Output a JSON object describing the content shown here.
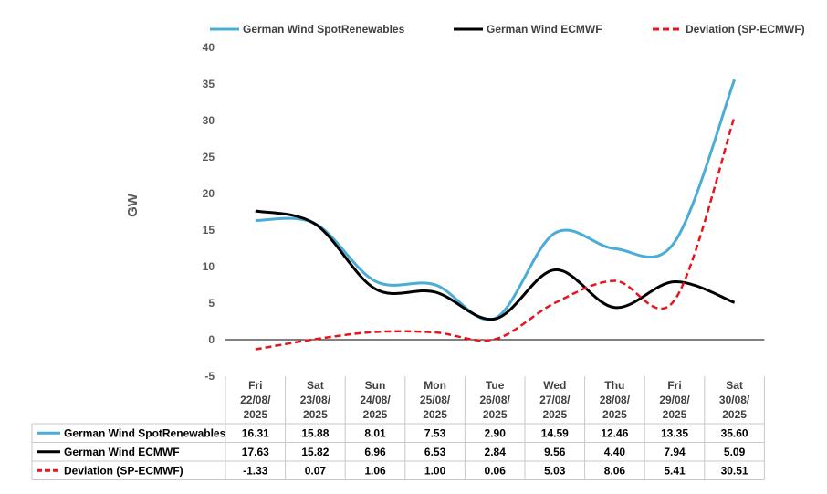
{
  "chart_data": {
    "type": "line",
    "title": "",
    "xlabel": "",
    "ylabel": "GW",
    "ylim": [
      -5,
      40
    ],
    "yticks": [
      "-5",
      "0",
      "5",
      "10",
      "15",
      "20",
      "25",
      "30",
      "35",
      "40"
    ],
    "grid": false,
    "legend_position": "top",
    "categories": [
      [
        "Fri",
        "22/08/",
        "2025"
      ],
      [
        "Sat",
        "23/08/",
        "2025"
      ],
      [
        "Sun",
        "24/08/",
        "2025"
      ],
      [
        "Mon",
        "25/08/",
        "2025"
      ],
      [
        "Tue",
        "26/08/",
        "2025"
      ],
      [
        "Wed",
        "27/08/",
        "2025"
      ],
      [
        "Thu",
        "28/08/",
        "2025"
      ],
      [
        "Fri",
        "29/08/",
        "2025"
      ],
      [
        "Sat",
        "30/08/",
        "2025"
      ]
    ],
    "series": [
      {
        "name": "German Wind SpotRenewables",
        "color": "#4bacd6",
        "dash": "solid",
        "values": [
          16.31,
          15.88,
          8.01,
          7.53,
          2.9,
          14.59,
          12.46,
          13.35,
          35.6
        ],
        "labels": [
          "16.31",
          "15.88",
          "8.01",
          "7.53",
          "2.90",
          "14.59",
          "12.46",
          "13.35",
          "35.60"
        ]
      },
      {
        "name": "German Wind ECMWF",
        "color": "#000000",
        "dash": "solid",
        "values": [
          17.63,
          15.82,
          6.96,
          6.53,
          2.84,
          9.56,
          4.4,
          7.94,
          5.09
        ],
        "labels": [
          "17.63",
          "15.82",
          "6.96",
          "6.53",
          "2.84",
          "9.56",
          "4.40",
          "7.94",
          "5.09"
        ]
      },
      {
        "name": "Deviation (SP-ECMWF)",
        "color": "#e8141c",
        "dash": "dashed",
        "values": [
          -1.33,
          0.07,
          1.06,
          1.0,
          0.06,
          5.03,
          8.06,
          5.41,
          30.51
        ],
        "labels": [
          "-1.33",
          "0.07",
          "1.06",
          "1.00",
          "0.06",
          "5.03",
          "8.06",
          "5.41",
          "30.51"
        ]
      }
    ]
  }
}
